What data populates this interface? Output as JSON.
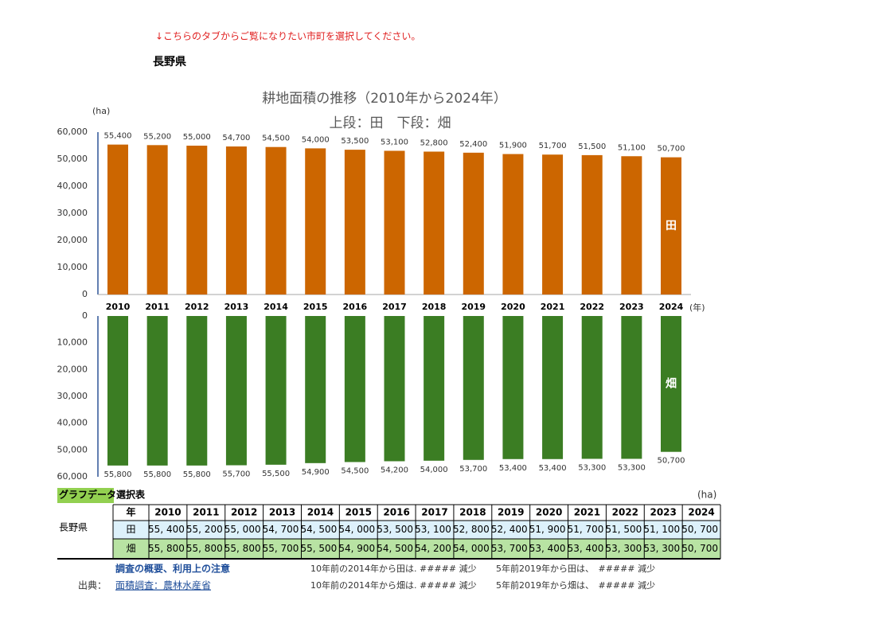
{
  "notice": "↓こちらのタブからご覧になりたい市町を選択してください。",
  "prefecture": "長野県",
  "chart_data": [
    {
      "type": "bar",
      "title": "耕地面積の推移（2010年から2024年）",
      "subtitle": "上段：田　下段：畑",
      "y_label": "(ha)",
      "x_label": "(年)",
      "categories": [
        "2010",
        "2011",
        "2012",
        "2013",
        "2014",
        "2015",
        "2016",
        "2017",
        "2018",
        "2019",
        "2020",
        "2021",
        "2022",
        "2023",
        "2024"
      ],
      "series": [
        {
          "name": "田",
          "color": "#cc6600",
          "values": [
            55400,
            55200,
            55000,
            54700,
            54500,
            54000,
            53500,
            53100,
            52800,
            52400,
            51900,
            51700,
            51500,
            51100,
            50700
          ],
          "value_labels": [
            "55,400",
            "55,200",
            "55,000",
            "54,700",
            "54,500",
            "54,000",
            "53,500",
            "53,100",
            "52,800",
            "52,400",
            "51,900",
            "51,700",
            "51,500",
            "51,100",
            "50,700"
          ]
        }
      ],
      "ylim": [
        0,
        60000
      ],
      "yticks": [
        0,
        {
          "value": 10000,
          "label": "10,000"
        },
        {
          "value": 20000,
          "label": "20,000"
        },
        {
          "value": 30000,
          "label": "30,000"
        },
        {
          "value": 40000,
          "label": "40,000"
        },
        {
          "value": 50000,
          "label": "50,000"
        },
        {
          "value": 60000,
          "label": "60,000"
        }
      ]
    },
    {
      "type": "bar",
      "y_inverted": true,
      "series": [
        {
          "name": "畑",
          "color": "#3b7d23",
          "values": [
            55800,
            55800,
            55800,
            55700,
            55500,
            54900,
            54500,
            54200,
            54000,
            53700,
            53400,
            53400,
            53300,
            53300,
            50700
          ],
          "value_labels": [
            "55,800",
            "55,800",
            "55,800",
            "55,700",
            "55,500",
            "54,900",
            "54,500",
            "54,200",
            "54,000",
            "53,700",
            "53,400",
            "53,400",
            "53,300",
            "53,300",
            "50,700"
          ]
        }
      ],
      "ylim": [
        0,
        60000
      ],
      "yticks": [
        0,
        {
          "value": 10000,
          "label": "10,000"
        },
        {
          "value": 20000,
          "label": "20,000"
        },
        {
          "value": 30000,
          "label": "30,000"
        },
        {
          "value": 40000,
          "label": "40,000"
        },
        {
          "value": 50000,
          "label": "50,000"
        },
        {
          "value": 60000,
          "label": "60,000"
        }
      ]
    }
  ],
  "table": {
    "title": "グラフデータ選択表",
    "unit": "(ha)",
    "region": "長野県",
    "header": [
      "年",
      "2010",
      "2011",
      "2012",
      "2013",
      "2014",
      "2015",
      "2016",
      "2017",
      "2018",
      "2019",
      "2020",
      "2021",
      "2022",
      "2023",
      "2024"
    ],
    "rows": [
      [
        "田",
        "55, 400",
        "55, 200",
        "55, 000",
        "54, 700",
        "54, 500",
        "54, 000",
        "53, 500",
        "53, 100",
        "52, 800",
        "52, 400",
        "51, 900",
        "51, 700",
        "51, 500",
        "51, 100",
        "50, 700"
      ],
      [
        "畑",
        "55, 800",
        "55, 800",
        "55, 800",
        "55, 700",
        "55, 500",
        "54, 900",
        "54, 500",
        "54, 200",
        "54, 000",
        "53, 700",
        "53, 400",
        "53, 400",
        "53, 300",
        "53, 300",
        "50, 700"
      ]
    ]
  },
  "notes": {
    "link": "調査の概要、利用上の注意",
    "source_label": "出典：",
    "source": "面積調査：農林水産省",
    "lines": [
      [
        "10年前の2014年から田は. ##### 減少",
        "5年前2019年から田は、　##### 減少"
      ],
      [
        "10年前の2014年から畑は. ##### 減少",
        "5年前2019年から畑は、　##### 減少"
      ]
    ]
  }
}
